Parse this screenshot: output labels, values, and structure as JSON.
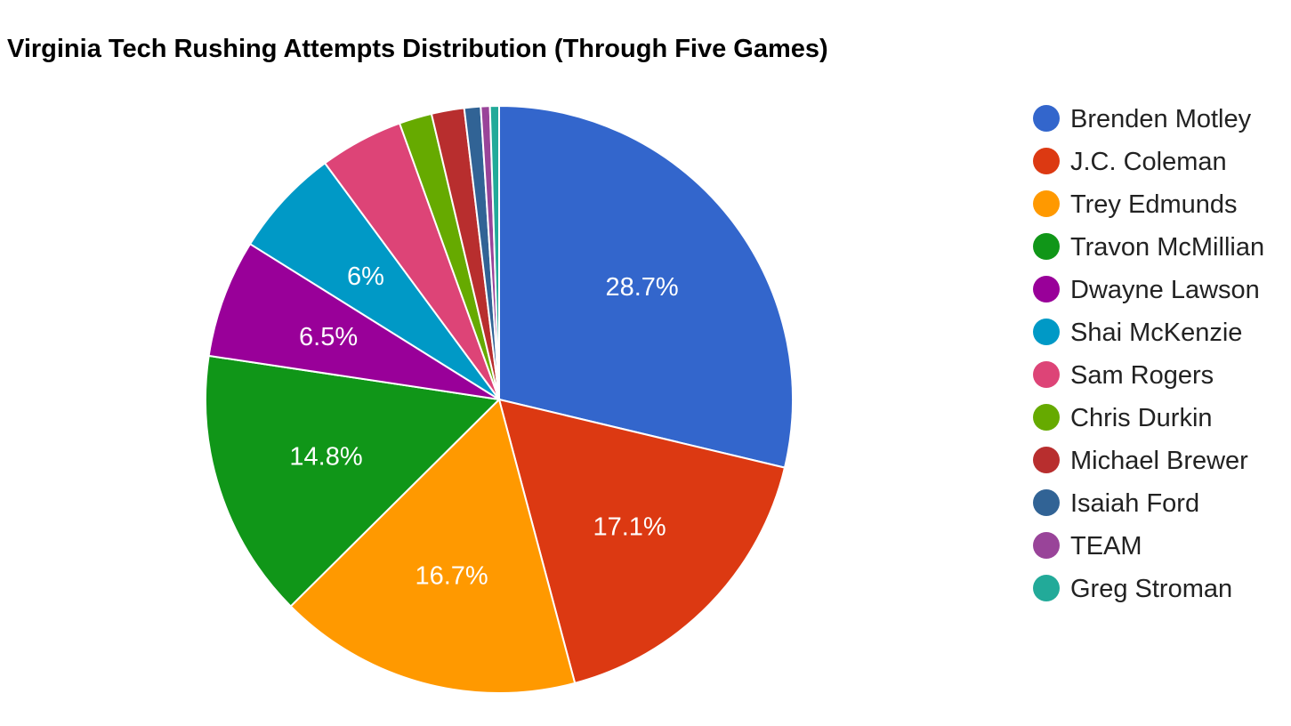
{
  "chart_data": {
    "type": "pie",
    "title": "Virginia Tech Rushing Attempts Distribution (Through Five Games)",
    "legend_position": "right",
    "slices": [
      {
        "name": "Brenden Motley",
        "value": 28.7,
        "label": "28.7%",
        "color": "#3366cc"
      },
      {
        "name": "J.C. Coleman",
        "value": 17.1,
        "label": "17.1%",
        "color": "#dc3912"
      },
      {
        "name": "Trey Edmunds",
        "value": 16.7,
        "label": "16.7%",
        "color": "#ff9900"
      },
      {
        "name": "Travon McMillian",
        "value": 14.8,
        "label": "14.8%",
        "color": "#109618"
      },
      {
        "name": "Dwayne Lawson",
        "value": 6.5,
        "label": "6.5%",
        "color": "#990099"
      },
      {
        "name": "Shai McKenzie",
        "value": 6.0,
        "label": "6%",
        "color": "#0099c6"
      },
      {
        "name": "Sam Rogers",
        "value": 4.6,
        "label": "",
        "color": "#dd4477"
      },
      {
        "name": "Chris Durkin",
        "value": 1.8,
        "label": "",
        "color": "#66aa00"
      },
      {
        "name": "Michael Brewer",
        "value": 1.8,
        "label": "",
        "color": "#b82e2e"
      },
      {
        "name": "Isaiah Ford",
        "value": 0.9,
        "label": "",
        "color": "#316395"
      },
      {
        "name": "TEAM",
        "value": 0.5,
        "label": "",
        "color": "#994499"
      },
      {
        "name": "Greg Stroman",
        "value": 0.5,
        "label": "",
        "color": "#22aa99"
      }
    ]
  }
}
